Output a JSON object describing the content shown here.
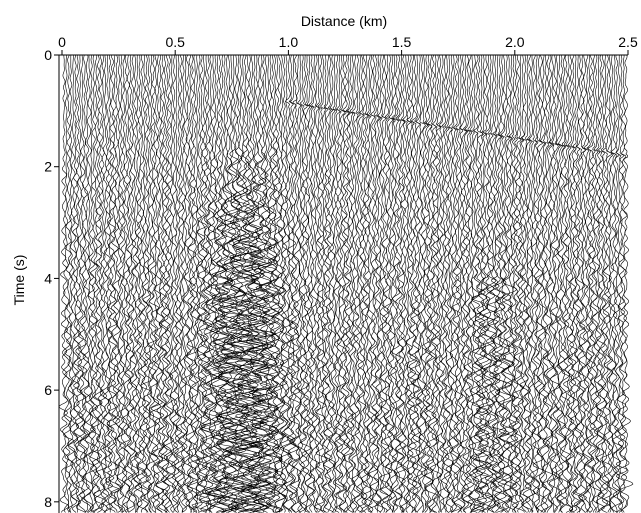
{
  "chart_data": {
    "type": "wiggle",
    "x_label": "Distance (km)",
    "y_label": "Time (s)",
    "xlim": [
      0,
      2.5
    ],
    "xticks": [
      0,
      0.5,
      {
        "value": 1,
        "label": "1.0"
      },
      1.5,
      {
        "value": 2,
        "label": "2.0"
      },
      2.5
    ],
    "ylim": [
      0,
      8.2
    ],
    "yticks": [
      0,
      2,
      4,
      6,
      8
    ],
    "y_inverted": true,
    "x_axis_position": "top",
    "color": "#000000"
  }
}
